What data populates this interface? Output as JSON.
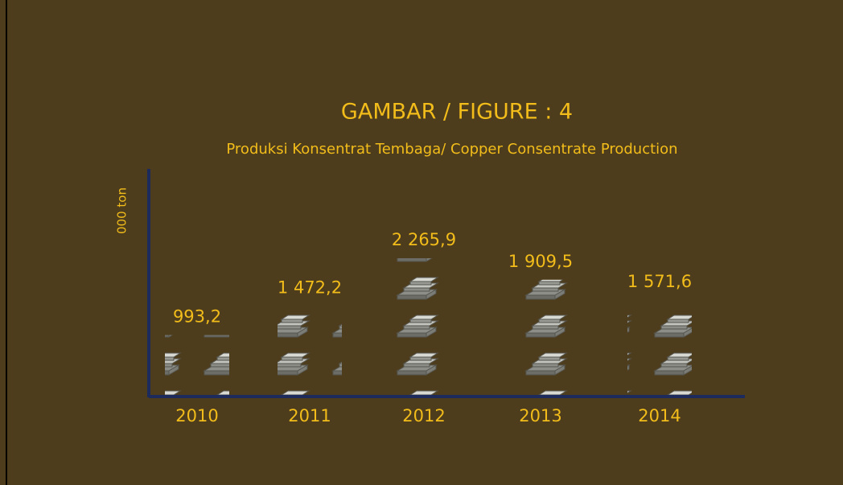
{
  "chart_data": {
    "type": "bar",
    "title": "GAMBAR / FIGURE : 4",
    "subtitle": "Produksi Konsentrat Tembaga/ Copper Consentrate Production",
    "y_label": "000 ton",
    "categories": [
      "2010",
      "2011",
      "2012",
      "2013",
      "2014"
    ],
    "values": [
      993.2,
      1472.2,
      2265.9,
      1909.5,
      1571.6
    ],
    "value_labels": [
      "993,2",
      "1 472,2",
      "2 265,9",
      "1 909,5",
      "1 571,6"
    ],
    "color": "#a9a9a4"
  }
}
